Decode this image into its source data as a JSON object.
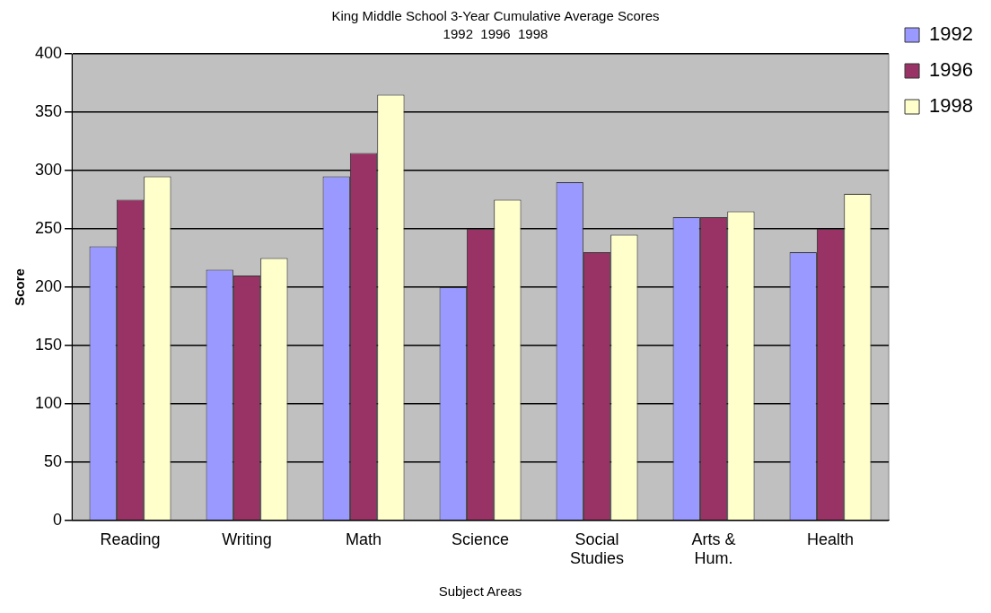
{
  "chart_data": {
    "type": "bar",
    "title": "King Middle School 3-Year Cumulative Average Scores",
    "subtitle": "1992  1996  1998",
    "xlabel": "Subject Areas",
    "ylabel": "Score",
    "categories": [
      "Reading",
      "Writing",
      "Math",
      "Science",
      "Social Studies",
      "Arts & Hum.",
      "Health"
    ],
    "series": [
      {
        "name": "1992",
        "color": "#9999ff",
        "values": [
          235,
          215,
          295,
          200,
          290,
          260,
          230
        ]
      },
      {
        "name": "1996",
        "color": "#993366",
        "values": [
          275,
          210,
          315,
          250,
          230,
          260,
          250
        ]
      },
      {
        "name": "1998",
        "color": "#ffffcc",
        "values": [
          295,
          225,
          365,
          275,
          245,
          265,
          280
        ]
      }
    ],
    "ylim": [
      0,
      400
    ],
    "yticks": [
      0,
      50,
      100,
      150,
      200,
      250,
      300,
      350,
      400
    ],
    "grid": "y",
    "legend": "top right"
  }
}
